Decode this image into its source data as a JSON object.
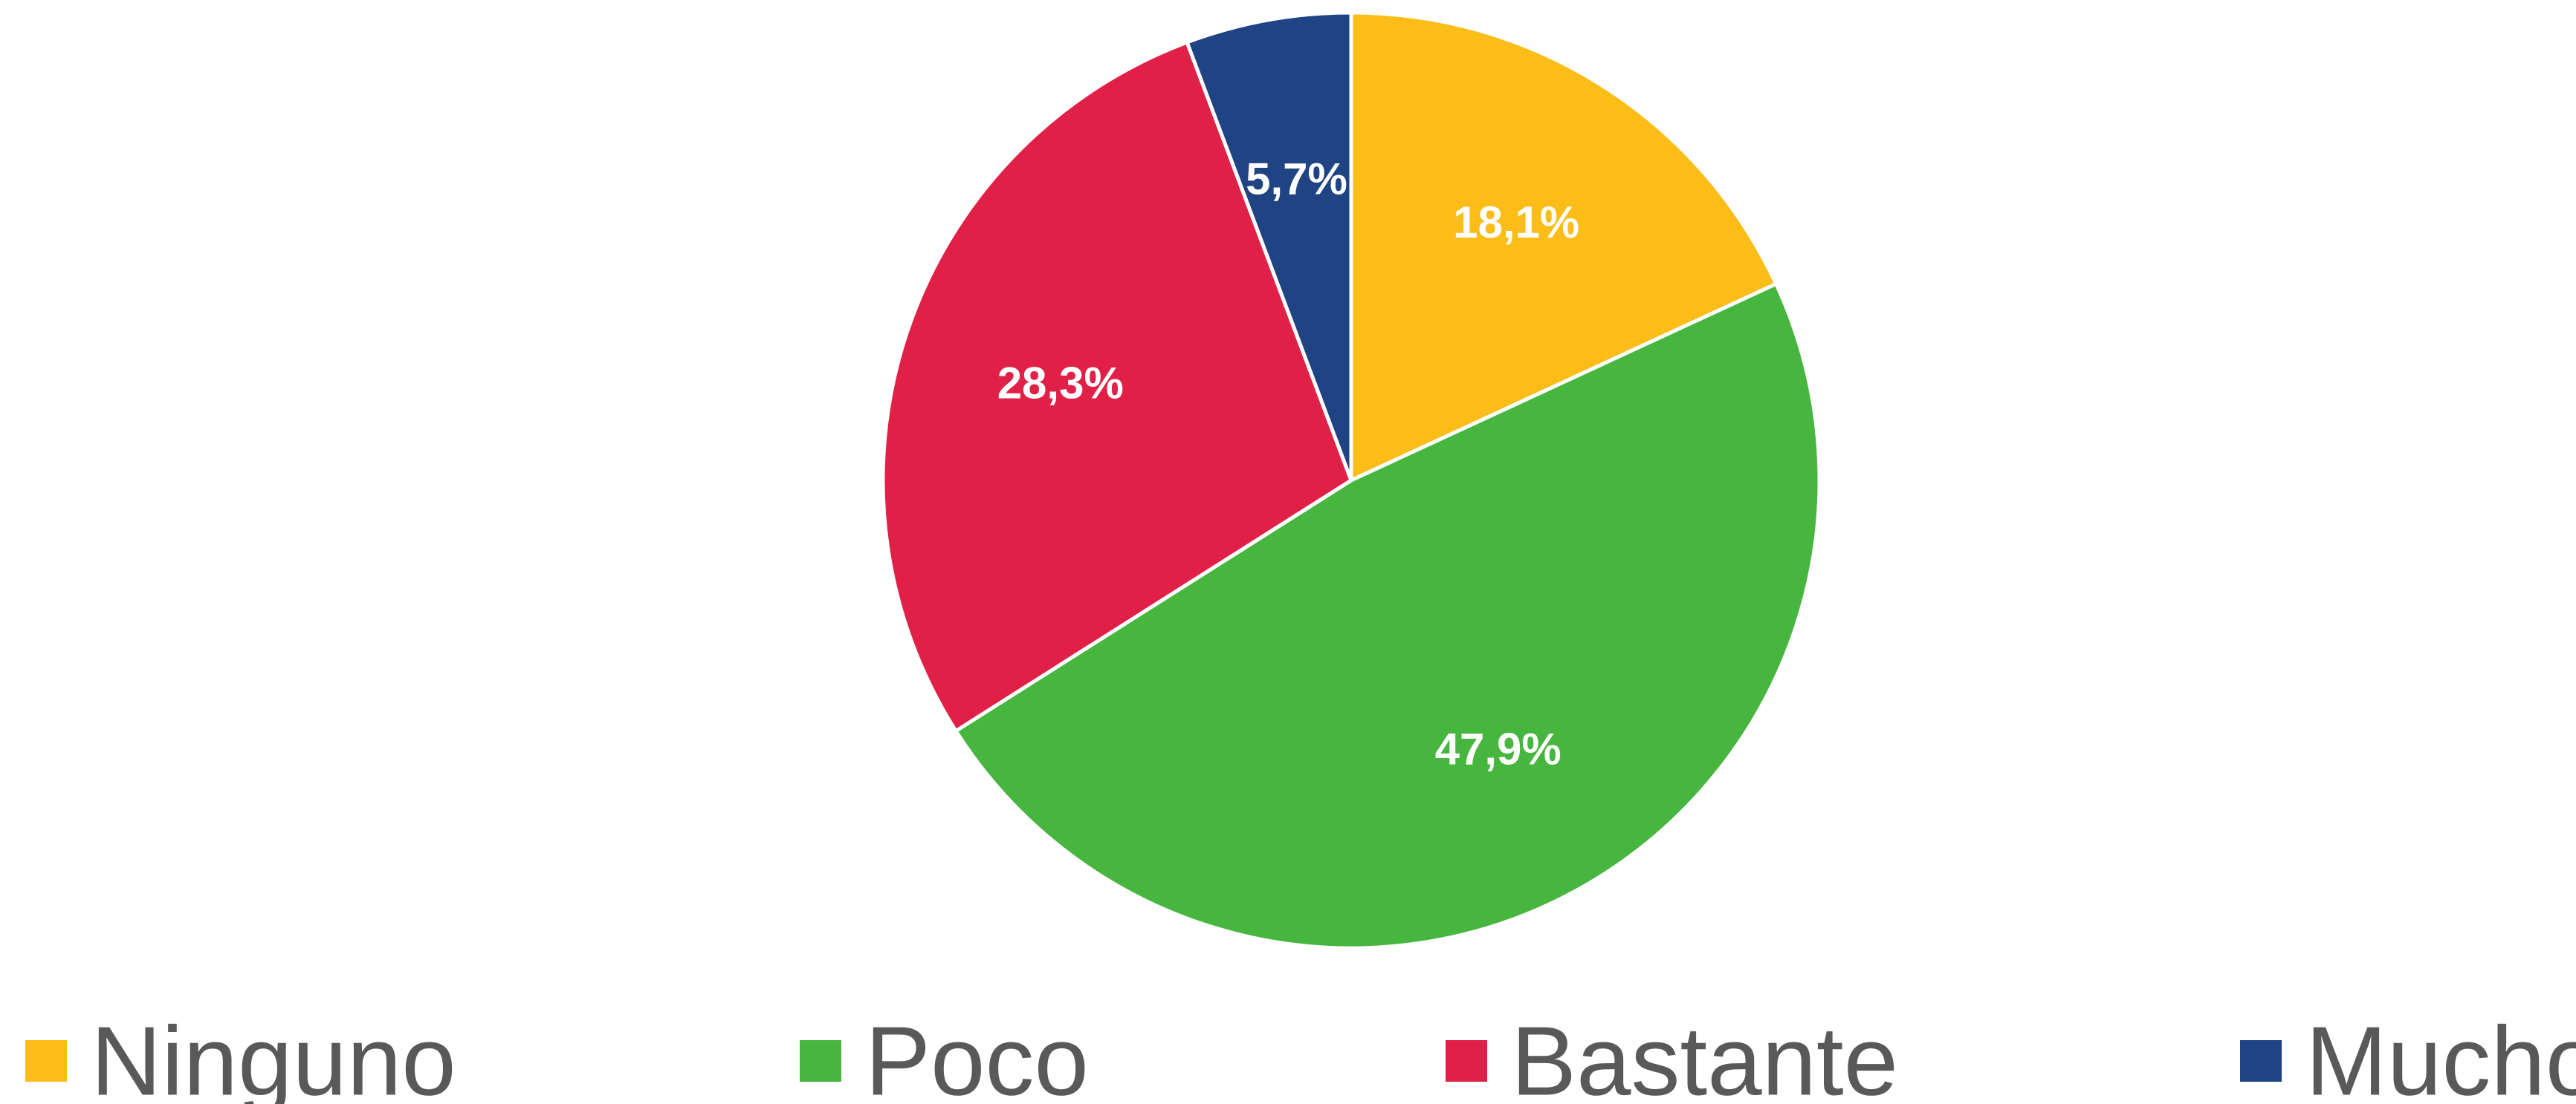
{
  "chart_data": {
    "type": "pie",
    "categories": [
      "Ninguno",
      "Poco",
      "Bastante",
      "Mucho"
    ],
    "values": [
      18.1,
      47.9,
      28.3,
      5.7
    ],
    "labels": [
      "18,1%",
      "47,9%",
      "28,3%",
      "5,7%"
    ],
    "colors": [
      "#FDBD19",
      "#47B63F",
      "#E12047",
      "#1F4383"
    ],
    "start": "12 o'clock",
    "direction": "clockwise",
    "legend": "bottom",
    "title": ""
  }
}
